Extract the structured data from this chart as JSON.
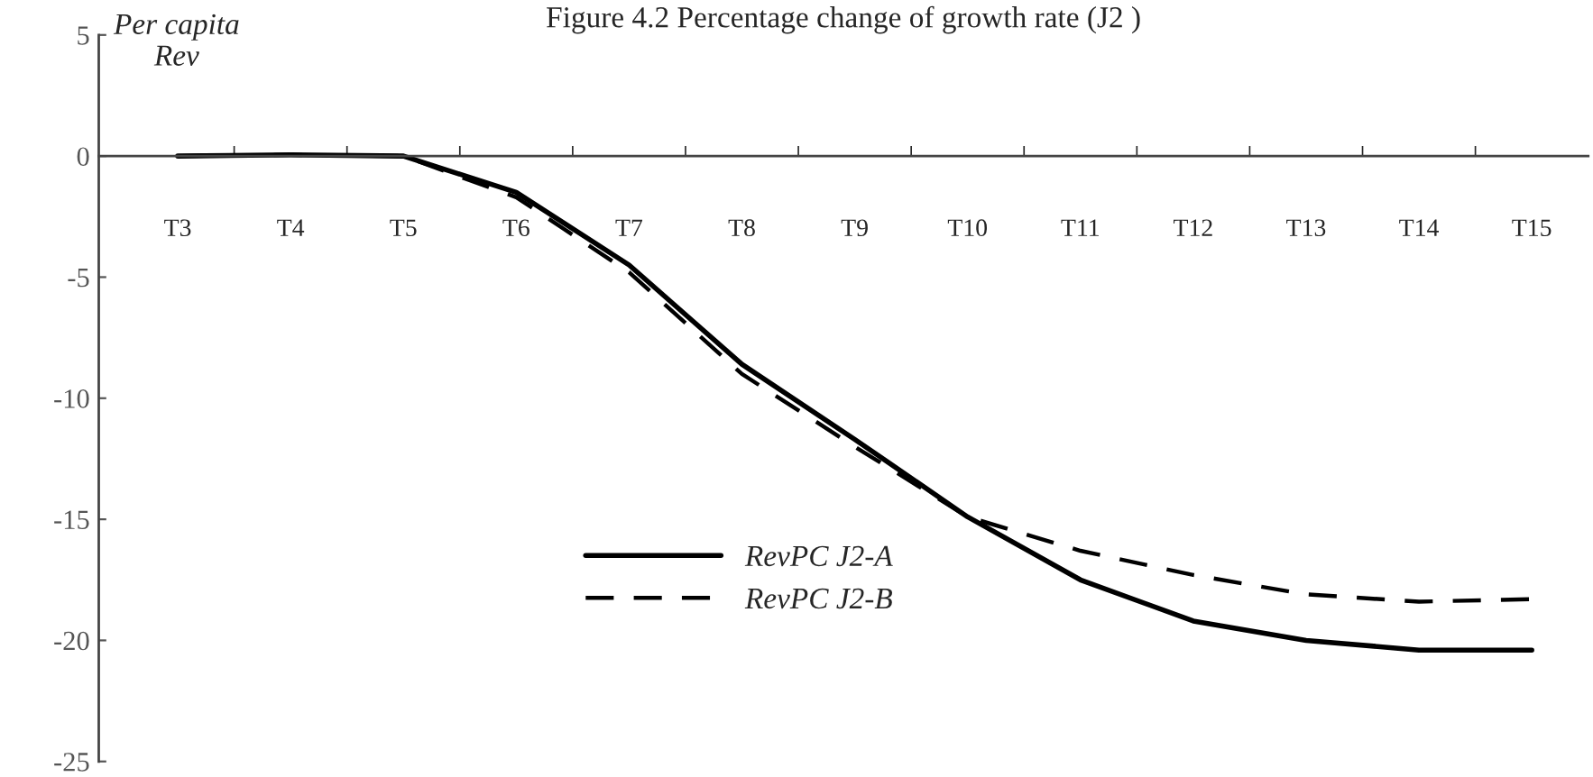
{
  "chart_data": {
    "type": "line",
    "title": "Figure 4.2 Percentage change of growth rate (J2 )",
    "ylabel": "Per capita\nRev",
    "categories": [
      "T3",
      "T4",
      "T5",
      "T6",
      "T7",
      "T8",
      "T9",
      "T10",
      "T11",
      "T12",
      "T13",
      "T14",
      "T15"
    ],
    "series": [
      {
        "name": "RevPC J2-A",
        "color": "#000000",
        "line_style": "solid",
        "values": [
          0,
          0.05,
          0,
          -1.5,
          -4.5,
          -8.6,
          -11.7,
          -14.9,
          -17.5,
          -19.2,
          -20.0,
          -20.4,
          -20.4
        ]
      },
      {
        "name": "RevPC J2-B",
        "color": "#000000",
        "line_style": "dashed",
        "values": [
          0,
          0.05,
          0,
          -1.7,
          -4.8,
          -9.0,
          -12.0,
          -14.9,
          -16.3,
          -17.3,
          -18.1,
          -18.4,
          -18.3
        ]
      }
    ],
    "ylim": [
      -25,
      5
    ],
    "yticks": [
      -25,
      -20,
      -15,
      -10,
      -5,
      0,
      5
    ],
    "grid": false,
    "legend": "center",
    "marker": "none"
  }
}
